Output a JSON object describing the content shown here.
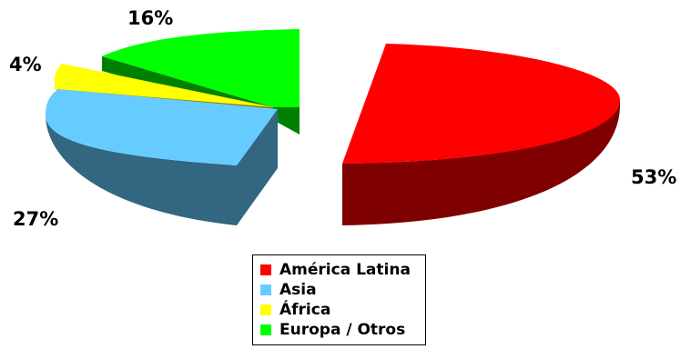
{
  "chart_data": {
    "type": "pie",
    "categories": [
      "América Latina",
      "Asia",
      "África",
      "Europa / Otros"
    ],
    "values": [
      53,
      27,
      4,
      16
    ],
    "value_labels": [
      "53%",
      "27%",
      "4%",
      "16%"
    ],
    "colors": {
      "top": [
        "#ff0000",
        "#66ccff",
        "#ffff00",
        "#00ff00"
      ],
      "side": [
        "#7f0000",
        "#336680",
        "#808000",
        "#008000"
      ]
    },
    "legend_position": "bottom"
  }
}
